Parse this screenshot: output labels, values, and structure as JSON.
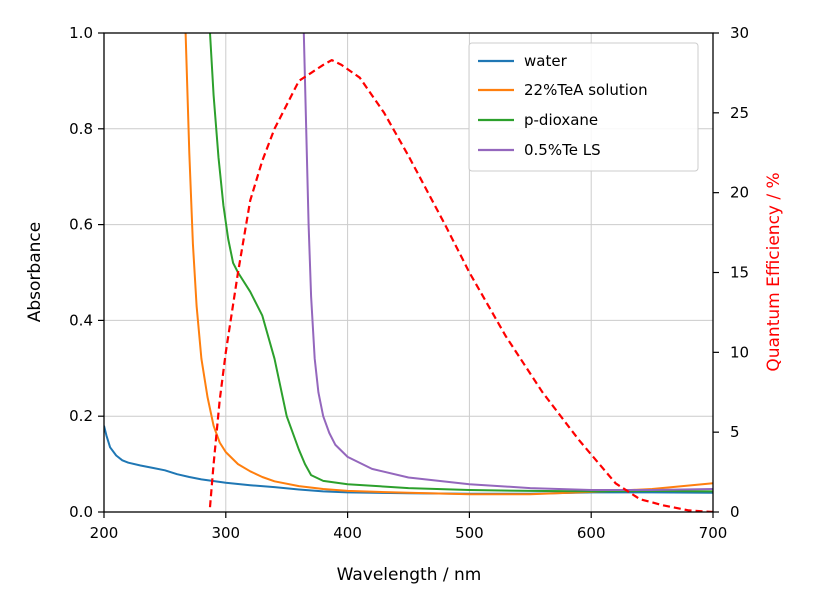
{
  "chart_data": {
    "type": "line",
    "xlabel": "Wavelength / nm",
    "ylabel": "Absorbance",
    "y2label": "Quantum Efficiency / %",
    "xlim": [
      200,
      700
    ],
    "ylim": [
      0,
      1.0
    ],
    "y2lim": [
      0,
      30
    ],
    "xticks": [
      "200",
      "300",
      "400",
      "500",
      "600",
      "700"
    ],
    "yticks": [
      "0.0",
      "0.2",
      "0.4",
      "0.6",
      "0.8",
      "1.0"
    ],
    "y2ticks": [
      "0",
      "5",
      "10",
      "15",
      "20",
      "25",
      "30"
    ],
    "grid": true,
    "legend_position": "top-right",
    "colors": {
      "water": "#1f77b4",
      "tea": "#ff7f0e",
      "dioxane": "#2ca02c",
      "te_ls": "#9467bd",
      "qe": "#ff0000",
      "y2_label": "#ff0000"
    },
    "series": [
      {
        "name": "water",
        "axis": "left",
        "style": "solid",
        "x": [
          200,
          202,
          205,
          210,
          215,
          220,
          230,
          240,
          250,
          260,
          270,
          280,
          300,
          320,
          340,
          360,
          380,
          400,
          450,
          500,
          550,
          600,
          650,
          700
        ],
        "y": [
          0.18,
          0.16,
          0.135,
          0.118,
          0.108,
          0.103,
          0.097,
          0.092,
          0.087,
          0.079,
          0.073,
          0.068,
          0.061,
          0.056,
          0.052,
          0.047,
          0.043,
          0.041,
          0.039,
          0.038,
          0.038,
          0.041,
          0.041,
          0.04
        ]
      },
      {
        "name": "22%TeA solution",
        "axis": "left",
        "style": "solid",
        "x": [
          267,
          270,
          273,
          276,
          280,
          285,
          290,
          295,
          300,
          310,
          320,
          330,
          340,
          360,
          380,
          400,
          450,
          500,
          550,
          600,
          650,
          700
        ],
        "y": [
          1.0,
          0.75,
          0.56,
          0.43,
          0.32,
          0.24,
          0.18,
          0.145,
          0.125,
          0.1,
          0.085,
          0.073,
          0.064,
          0.054,
          0.048,
          0.044,
          0.04,
          0.037,
          0.037,
          0.042,
          0.048,
          0.06
        ]
      },
      {
        "name": "p-dioxane",
        "axis": "left",
        "style": "solid",
        "x": [
          287,
          290,
          294,
          298,
          302,
          306,
          310,
          320,
          330,
          340,
          350,
          360,
          365,
          370,
          380,
          400,
          450,
          500,
          550,
          600,
          650,
          700
        ],
        "y": [
          1.0,
          0.87,
          0.74,
          0.64,
          0.57,
          0.52,
          0.5,
          0.46,
          0.41,
          0.32,
          0.2,
          0.13,
          0.1,
          0.077,
          0.065,
          0.058,
          0.05,
          0.046,
          0.044,
          0.043,
          0.044,
          0.043
        ]
      },
      {
        "name": "0.5%Te LS",
        "axis": "left",
        "style": "solid",
        "x": [
          364,
          366,
          368,
          370,
          373,
          376,
          380,
          385,
          390,
          400,
          420,
          450,
          500,
          550,
          600,
          650,
          700
        ],
        "y": [
          1.0,
          0.8,
          0.6,
          0.45,
          0.32,
          0.25,
          0.2,
          0.165,
          0.14,
          0.115,
          0.09,
          0.072,
          0.058,
          0.05,
          0.046,
          0.046,
          0.048
        ]
      },
      {
        "name": "Quantum Efficiency",
        "axis": "right",
        "style": "dashed",
        "x": [
          287,
          290,
          295,
          300,
          305,
          310,
          320,
          330,
          340,
          350,
          360,
          370,
          380,
          387,
          395,
          410,
          430,
          450,
          480,
          500,
          530,
          560,
          590,
          620,
          640,
          660,
          680,
          700
        ],
        "y": [
          0.3,
          3,
          7,
          10,
          12.5,
          15,
          19.5,
          22,
          24,
          25.5,
          27,
          27.5,
          28,
          28.3,
          28,
          27.2,
          25,
          22.3,
          18,
          15,
          11,
          7.5,
          4.5,
          1.8,
          0.8,
          0.4,
          0.1,
          0
        ]
      }
    ]
  }
}
